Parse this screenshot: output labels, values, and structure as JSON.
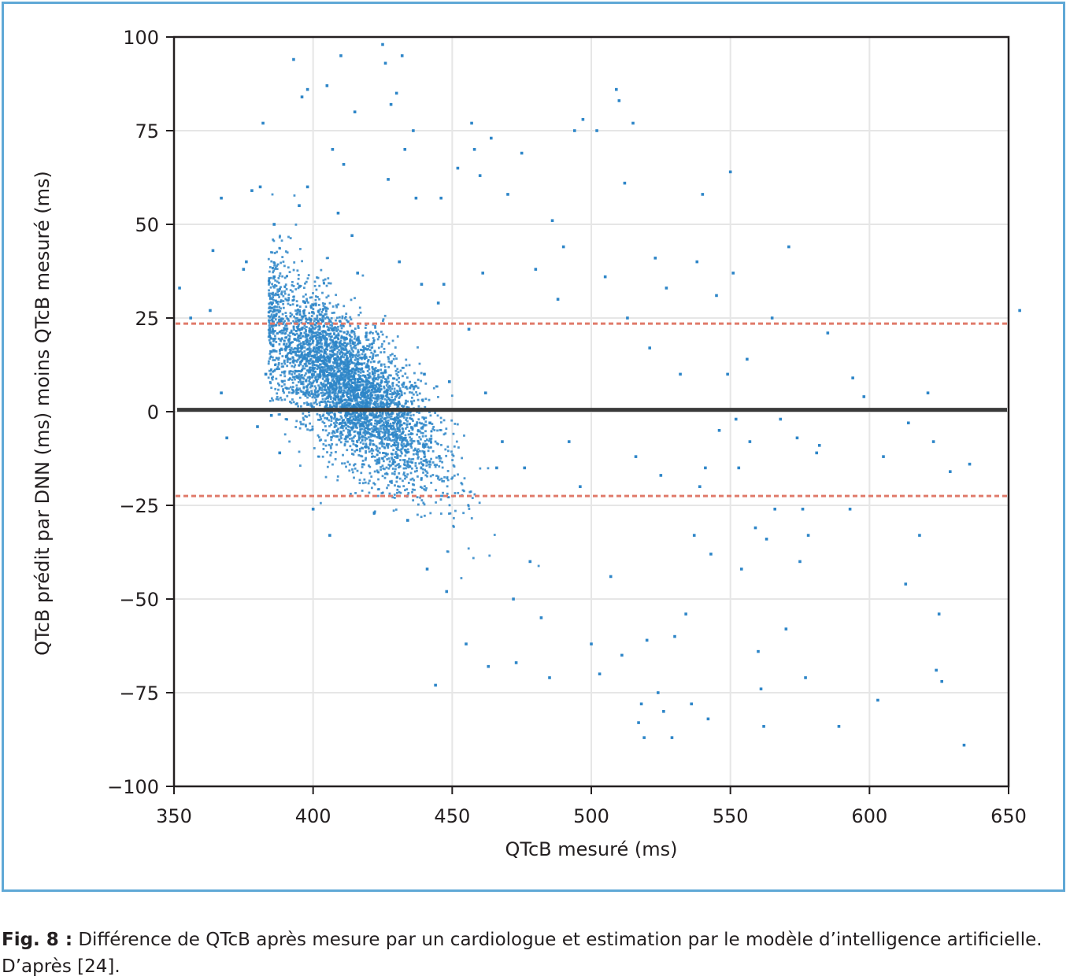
{
  "caption": {
    "label": "Fig. 8 :",
    "text": "Différence de QTcB après mesure par un cardiologue et estimation par le modèle d’intelligence artificielle. D’après [24]."
  },
  "colors": {
    "frame": "#5fa8d6",
    "points": "#2e86c8",
    "mean_line": "#3a3a3a",
    "limit_lines": "#e07a6a",
    "grid": "#e6e6e6"
  },
  "chart_data": {
    "type": "scatter",
    "title": "",
    "xlabel": "QTcB mesuré (ms)",
    "ylabel": "QTcB prédit par DNN (ms) moins QTcB mesuré (ms)",
    "xlim": [
      350,
      650
    ],
    "ylim": [
      -100,
      100
    ],
    "xticks": [
      350,
      400,
      450,
      500,
      550,
      600,
      650
    ],
    "yticks": [
      100,
      75,
      50,
      25,
      0,
      -25,
      -50,
      -75,
      -100
    ],
    "ytick_labels": [
      "100",
      "75",
      "50",
      "25",
      "0",
      "−25",
      "−50",
      "−75",
      "−100"
    ],
    "grid": true,
    "reference_lines": [
      {
        "y": 0.5,
        "style": "solid"
      },
      {
        "y": 23.5,
        "style": "dashed"
      },
      {
        "y": -22.5,
        "style": "dashed"
      }
    ],
    "series": [
      {
        "points": [
          [
            352,
            33
          ],
          [
            356,
            25
          ],
          [
            363,
            27
          ],
          [
            364,
            43
          ],
          [
            367,
            5
          ],
          [
            367,
            57
          ],
          [
            369,
            -7
          ],
          [
            375,
            38
          ],
          [
            376,
            40
          ],
          [
            378,
            59
          ],
          [
            380,
            -4
          ],
          [
            381,
            60
          ],
          [
            382,
            77
          ],
          [
            383,
            10
          ],
          [
            385,
            -1
          ],
          [
            386,
            50
          ],
          [
            386,
            36
          ],
          [
            388,
            -11
          ],
          [
            393,
            94
          ],
          [
            395,
            55
          ],
          [
            396,
            84
          ],
          [
            398,
            86
          ],
          [
            398,
            60
          ],
          [
            400,
            -26
          ],
          [
            405,
            87
          ],
          [
            406,
            -33
          ],
          [
            407,
            70
          ],
          [
            409,
            53
          ],
          [
            410,
            95
          ],
          [
            411,
            66
          ],
          [
            414,
            47
          ],
          [
            415,
            80
          ],
          [
            416,
            37
          ],
          [
            419,
            20
          ],
          [
            422,
            -27
          ],
          [
            425,
            98
          ],
          [
            426,
            93
          ],
          [
            427,
            62
          ],
          [
            428,
            82
          ],
          [
            430,
            85
          ],
          [
            431,
            40
          ],
          [
            432,
            95
          ],
          [
            433,
            70
          ],
          [
            434,
            -29
          ],
          [
            436,
            75
          ],
          [
            437,
            57
          ],
          [
            439,
            34
          ],
          [
            440,
            10
          ],
          [
            441,
            -42
          ],
          [
            442,
            -3
          ],
          [
            444,
            -73
          ],
          [
            445,
            29
          ],
          [
            446,
            57
          ],
          [
            447,
            34
          ],
          [
            448,
            -48
          ],
          [
            449,
            8
          ],
          [
            452,
            65
          ],
          [
            455,
            -62
          ],
          [
            456,
            22
          ],
          [
            457,
            77
          ],
          [
            458,
            70
          ],
          [
            460,
            63
          ],
          [
            461,
            37
          ],
          [
            462,
            5
          ],
          [
            463,
            -68
          ],
          [
            464,
            73
          ],
          [
            466,
            -15
          ],
          [
            468,
            -8
          ],
          [
            470,
            58
          ],
          [
            472,
            -50
          ],
          [
            473,
            -67
          ],
          [
            475,
            69
          ],
          [
            476,
            -15
          ],
          [
            478,
            -40
          ],
          [
            480,
            38
          ],
          [
            482,
            -55
          ],
          [
            485,
            -71
          ],
          [
            486,
            51
          ],
          [
            488,
            30
          ],
          [
            490,
            44
          ],
          [
            492,
            -8
          ],
          [
            494,
            75
          ],
          [
            496,
            -20
          ],
          [
            497,
            78
          ],
          [
            500,
            -62
          ],
          [
            502,
            75
          ],
          [
            503,
            -70
          ],
          [
            505,
            36
          ],
          [
            507,
            -44
          ],
          [
            509,
            86
          ],
          [
            510,
            83
          ],
          [
            511,
            -65
          ],
          [
            512,
            61
          ],
          [
            513,
            25
          ],
          [
            515,
            77
          ],
          [
            516,
            -12
          ],
          [
            517,
            -83
          ],
          [
            518,
            -78
          ],
          [
            519,
            -87
          ],
          [
            520,
            -61
          ],
          [
            521,
            17
          ],
          [
            523,
            41
          ],
          [
            524,
            -75
          ],
          [
            525,
            -17
          ],
          [
            526,
            -80
          ],
          [
            527,
            33
          ],
          [
            529,
            -87
          ],
          [
            530,
            -60
          ],
          [
            532,
            10
          ],
          [
            534,
            -54
          ],
          [
            536,
            -78
          ],
          [
            537,
            -33
          ],
          [
            538,
            40
          ],
          [
            539,
            -20
          ],
          [
            540,
            58
          ],
          [
            541,
            -15
          ],
          [
            542,
            -82
          ],
          [
            543,
            -38
          ],
          [
            545,
            31
          ],
          [
            546,
            -5
          ],
          [
            549,
            10
          ],
          [
            550,
            64
          ],
          [
            551,
            37
          ],
          [
            552,
            -2
          ],
          [
            553,
            -15
          ],
          [
            554,
            -42
          ],
          [
            556,
            14
          ],
          [
            557,
            -8
          ],
          [
            559,
            -31
          ],
          [
            560,
            -64
          ],
          [
            561,
            -74
          ],
          [
            562,
            -84
          ],
          [
            563,
            -34
          ],
          [
            565,
            25
          ],
          [
            566,
            -26
          ],
          [
            568,
            -2
          ],
          [
            570,
            -58
          ],
          [
            571,
            44
          ],
          [
            574,
            -7
          ],
          [
            575,
            -40
          ],
          [
            576,
            -26
          ],
          [
            577,
            -71
          ],
          [
            578,
            -33
          ],
          [
            581,
            -11
          ],
          [
            582,
            -9
          ],
          [
            585,
            21
          ],
          [
            589,
            -84
          ],
          [
            593,
            -26
          ],
          [
            594,
            9
          ],
          [
            598,
            4
          ],
          [
            603,
            -77
          ],
          [
            605,
            -12
          ],
          [
            613,
            -46
          ],
          [
            614,
            -3
          ],
          [
            618,
            -33
          ],
          [
            621,
            5
          ],
          [
            623,
            -8
          ],
          [
            624,
            -69
          ],
          [
            625,
            -54
          ],
          [
            626,
            -72
          ],
          [
            629,
            -16
          ],
          [
            634,
            -89
          ],
          [
            636,
            -14
          ],
          [
            654,
            27
          ]
        ]
      }
    ],
    "density": {
      "description": "dense cluster of several thousand points",
      "center": [
        412,
        7
      ],
      "cov": [
        [
          260,
          -150
        ],
        [
          -150,
          170
        ]
      ]
    }
  }
}
